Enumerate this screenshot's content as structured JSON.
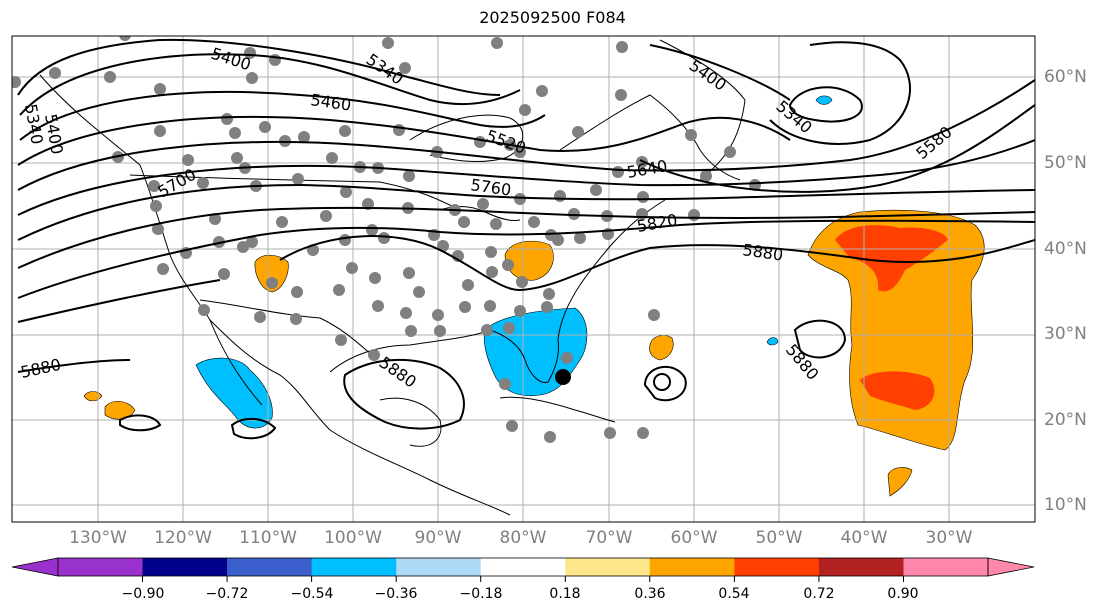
{
  "title": "2025092500 F084",
  "colors": {
    "orange": "#ffa500",
    "red_orange": "#ff4000",
    "blue": "#00bfff",
    "station": "#808080",
    "contour": "#000000",
    "grid": "#b0b0b0"
  },
  "lat_labels": [
    "60°N",
    "50°N",
    "40°N",
    "30°N",
    "20°N",
    "10°N"
  ],
  "lon_labels": [
    "130°W",
    "120°W",
    "110°W",
    "100°W",
    "90°W",
    "80°W",
    "70°W",
    "60°W",
    "50°W",
    "40°W",
    "30°W"
  ],
  "contour_labels": [
    "5400",
    "5340",
    "5460",
    "5520",
    "5340",
    "5400",
    "5340",
    "5400",
    "5580",
    "5640",
    "5700",
    "5760",
    "5820",
    "5880",
    "5880",
    "5880",
    "5880"
  ],
  "colorbar": {
    "ticks": [
      "−0.90",
      "−0.72",
      "−0.54",
      "−0.36",
      "−0.18",
      "0.18",
      "0.36",
      "0.54",
      "0.72",
      "0.90"
    ],
    "colors": [
      "#9932cc",
      "#00008b",
      "#3a5fcd",
      "#00bfff",
      "#add8f6",
      "#ffffff",
      "#fde68a",
      "#ffa500",
      "#ff4000",
      "#b22222",
      "#ff88aa"
    ]
  }
}
